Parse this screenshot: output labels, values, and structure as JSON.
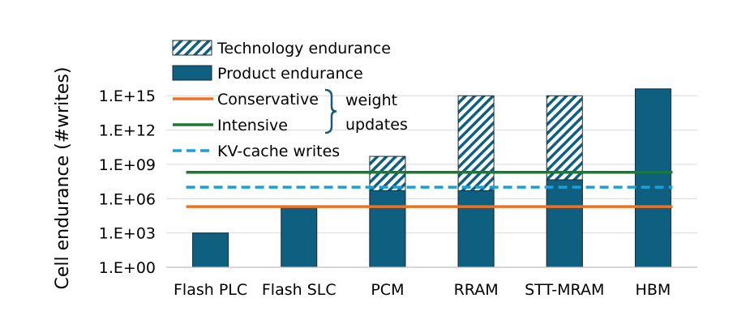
{
  "chart_data": {
    "type": "bar",
    "categories": [
      "Flash PLC",
      "Flash SLC",
      "PCM",
      "RRAM",
      "STT-MRAM",
      "HBM"
    ],
    "ylabel": "Cell endurance (#writes)",
    "yscale": "log10",
    "ylim": [
      1,
      1e+17
    ],
    "yticks": [
      {
        "value": 1,
        "label": "1.E+00"
      },
      {
        "value": 1000,
        "label": "1.E+03"
      },
      {
        "value": 1000000,
        "label": "1.E+06"
      },
      {
        "value": 1000000000,
        "label": "1.E+09"
      },
      {
        "value": 1000000000000,
        "label": "1.E+12"
      },
      {
        "value": 1000000000000000,
        "label": "1.E+15"
      }
    ],
    "grid": true,
    "series": [
      {
        "name": "Product endurance",
        "kind": "bar",
        "color": "#0e5f80",
        "values": [
          1000,
          200000,
          5000000,
          5000000,
          45000000,
          4000000000000000
        ]
      },
      {
        "name": "Technology endurance",
        "kind": "hatched-bar",
        "color": "#0e5f80",
        "values": [
          null,
          null,
          5000000000,
          1000000000000000,
          1000000000000000,
          null
        ]
      }
    ],
    "reference_lines": [
      {
        "name": "Conservative",
        "value": 200000,
        "color": "#f07020",
        "style": "solid",
        "group": "weight"
      },
      {
        "name": "Intensive",
        "value": 200000000,
        "color": "#1a7a2e",
        "style": "solid",
        "group": "weight"
      },
      {
        "name": "KV-cache writes",
        "value": 10000000,
        "color": "#1aa0d8",
        "style": "dashed",
        "group": null
      }
    ],
    "legend": {
      "placement": "top-left",
      "group_label_line1": "weight",
      "group_label_line2": "updates"
    }
  }
}
